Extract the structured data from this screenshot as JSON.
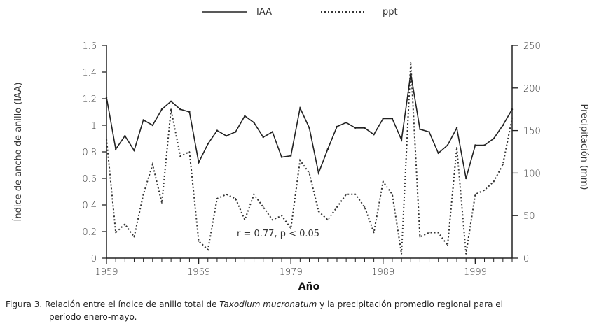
{
  "chart_data": {
    "type": "line",
    "xlabel": "Año",
    "ylabel_left": "Índice de ancho de anillo (IAA)",
    "ylabel_right": "Precipitación (mm)",
    "ylim_left": [
      0,
      1.6
    ],
    "yticks_left": [
      "0",
      "0.2",
      "0.4",
      "0.6",
      "0.8",
      "1",
      "1.2",
      "1.4",
      "1.6"
    ],
    "ylim_right": [
      0,
      250
    ],
    "yticks_right": [
      "0",
      "50",
      "100",
      "150",
      "200",
      "250"
    ],
    "xlim": [
      1959,
      2003
    ],
    "xticks": [
      "1959",
      "1969",
      "1979",
      "1989",
      "1999"
    ],
    "grid": false,
    "legend_position": "top-center",
    "annotation": "r = 0.77, p < 0.05",
    "series": [
      {
        "name": "IAA",
        "style": "solid",
        "axis": "left",
        "color": "#222222",
        "x": [
          1959,
          1960,
          1961,
          1962,
          1963,
          1964,
          1965,
          1966,
          1967,
          1968,
          1969,
          1970,
          1971,
          1972,
          1973,
          1974,
          1975,
          1976,
          1977,
          1978,
          1979,
          1980,
          1981,
          1982,
          1983,
          1984,
          1985,
          1986,
          1987,
          1988,
          1989,
          1990,
          1991,
          1992,
          1993,
          1994,
          1995,
          1996,
          1997,
          1998,
          1999,
          2000,
          2001,
          2002,
          2003
        ],
        "values": [
          1.21,
          0.82,
          0.92,
          0.81,
          1.04,
          1.0,
          1.12,
          1.18,
          1.12,
          1.1,
          0.72,
          0.86,
          0.96,
          0.92,
          0.95,
          1.07,
          1.02,
          0.91,
          0.95,
          0.76,
          0.77,
          1.13,
          0.98,
          0.64,
          0.82,
          0.99,
          1.02,
          0.98,
          0.98,
          0.93,
          1.05,
          1.05,
          0.89,
          1.39,
          0.97,
          0.95,
          0.79,
          0.85,
          0.98,
          0.6,
          0.85,
          0.85,
          0.9,
          1.0,
          1.12
        ]
      },
      {
        "name": "ppt",
        "style": "dotted",
        "axis": "right",
        "color": "#333333",
        "x": [
          1959,
          1960,
          1961,
          1962,
          1963,
          1964,
          1965,
          1966,
          1967,
          1968,
          1969,
          1970,
          1971,
          1972,
          1973,
          1974,
          1975,
          1976,
          1977,
          1978,
          1979,
          1980,
          1981,
          1982,
          1983,
          1984,
          1985,
          1986,
          1987,
          1988,
          1989,
          1990,
          1991,
          1992,
          1993,
          1994,
          1995,
          1996,
          1997,
          1998,
          1999,
          2000,
          2001,
          2002,
          2003
        ],
        "values": [
          140,
          30,
          40,
          25,
          75,
          110,
          65,
          175,
          120,
          125,
          20,
          10,
          70,
          75,
          70,
          45,
          75,
          60,
          45,
          50,
          35,
          115,
          100,
          55,
          45,
          60,
          75,
          75,
          60,
          30,
          90,
          75,
          5,
          230,
          25,
          30,
          30,
          15,
          130,
          5,
          75,
          80,
          90,
          110,
          165
        ]
      }
    ]
  },
  "caption": {
    "prefix": "Figura 3. Relación entre el índice de anillo total de ",
    "species": "Taxodium mucronatum",
    "suffix": " y la precipitación promedio regional para el",
    "line2": "período enero-mayo."
  }
}
